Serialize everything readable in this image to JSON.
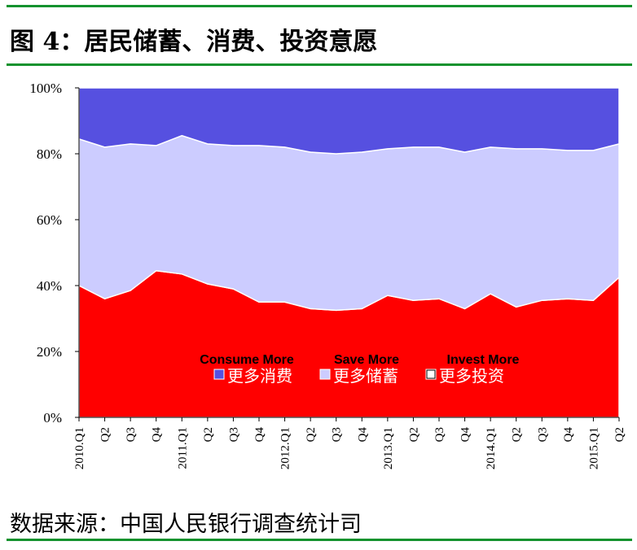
{
  "title": "图 4：居民储蓄、消费、投资意愿",
  "source": "数据来源：中国人民银行调查统计司",
  "chart_data": {
    "type": "area",
    "stacked": true,
    "categories": [
      "2010.Q1",
      "Q2",
      "Q3",
      "Q4",
      "2011.Q1",
      "Q2",
      "Q3",
      "Q4",
      "2012.Q1",
      "Q2",
      "Q3",
      "Q4",
      "2013.Q1",
      "Q2",
      "Q3",
      "Q4",
      "2014.Q1",
      "Q2",
      "Q3",
      "Q4",
      "2015.Q1",
      "Q2"
    ],
    "yticks": [
      "0%",
      "20%",
      "40%",
      "60%",
      "80%",
      "100%"
    ],
    "ylim": [
      0,
      100
    ],
    "series": [
      {
        "name": "Invest More",
        "color": "#ff0000",
        "values": [
          40,
          36,
          38.5,
          44.5,
          43.5,
          40.5,
          39,
          35,
          35,
          33,
          32.5,
          33,
          37,
          35.5,
          36,
          33,
          37.5,
          33.5,
          35.5,
          36,
          35.5,
          42.5
        ]
      },
      {
        "name": "Save More",
        "color": "#ccccff",
        "values": [
          44.5,
          46,
          44.5,
          38,
          42,
          42.5,
          43.5,
          47.5,
          47,
          47.5,
          47.5,
          47.5,
          44.5,
          46.5,
          46,
          47.5,
          44.5,
          48,
          46,
          45,
          45.5,
          40.5
        ]
      },
      {
        "name": "Consume More",
        "color": "#5650e0",
        "values": [
          15.5,
          18,
          17,
          17.5,
          14.5,
          17,
          17.5,
          17.5,
          18,
          19.5,
          20,
          19.5,
          18.5,
          18,
          18,
          19.5,
          18,
          18.5,
          18.5,
          19,
          19,
          17
        ]
      }
    ],
    "legend_en": [
      "Consume More",
      "Save More",
      "Invest More"
    ],
    "legend_cn": [
      "更多消费",
      "更多储蓄",
      "更多投资"
    ]
  }
}
